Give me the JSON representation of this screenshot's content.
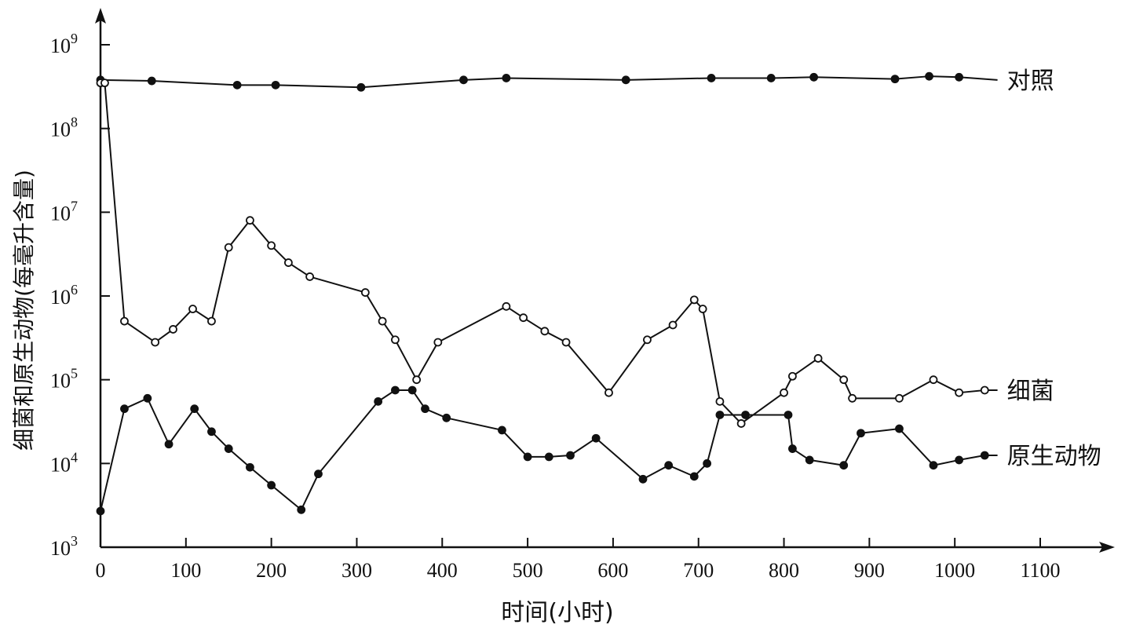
{
  "chart_data": {
    "type": "line",
    "title": "",
    "xlabel": "时间(小时)",
    "ylabel": "细菌和原生动物(每毫升含量)",
    "y_scale": "log",
    "xlim": [
      0,
      1100
    ],
    "ylim": [
      1000,
      1000000000
    ],
    "grid": false,
    "x_ticks": [
      "0",
      "100",
      "200",
      "300",
      "400",
      "500",
      "600",
      "700",
      "800",
      "900",
      "1000",
      "1100"
    ],
    "y_ticks": [
      {
        "base": "10",
        "exp": "3"
      },
      {
        "base": "10",
        "exp": "4"
      },
      {
        "base": "10",
        "exp": "5"
      },
      {
        "base": "10",
        "exp": "6"
      },
      {
        "base": "10",
        "exp": "7"
      },
      {
        "base": "10",
        "exp": "8"
      },
      {
        "base": "10",
        "exp": "9"
      }
    ],
    "series": [
      {
        "name": "对照",
        "marker": "filled",
        "x": [
          0,
          60,
          160,
          205,
          305,
          425,
          475,
          615,
          715,
          785,
          835,
          930,
          970,
          1005,
          1050
        ],
        "y": [
          380000000,
          370000000,
          330000000,
          330000000,
          310000000,
          380000000,
          400000000,
          380000000,
          400000000,
          400000000,
          410000000,
          390000000,
          420000000,
          410000000,
          380000000
        ],
        "label_end": 1050
      },
      {
        "name": "细菌",
        "marker": "open",
        "x": [
          0,
          5,
          28,
          64,
          85,
          108,
          130,
          150,
          175,
          200,
          220,
          245,
          310,
          330,
          345,
          370,
          395,
          475,
          495,
          520,
          545,
          595,
          640,
          670,
          695,
          705,
          725,
          750,
          800,
          810,
          840,
          870,
          880,
          935,
          975,
          1005,
          1035,
          1050
        ],
        "y": [
          350000000,
          350000000,
          500000,
          280000,
          400000,
          700000,
          500000,
          3800000,
          8000000,
          4000000,
          2500000,
          1700000,
          1100000,
          500000,
          300000,
          100000,
          280000,
          750000,
          550000,
          380000,
          280000,
          70000,
          300000,
          450000,
          900000,
          700000,
          55000,
          30000,
          70000,
          110000,
          180000,
          100000,
          60000,
          60000,
          100000,
          70000,
          75000,
          75000
        ],
        "label_end": 1050
      },
      {
        "name": "原生动物",
        "marker": "filled",
        "x": [
          0,
          28,
          55,
          80,
          110,
          130,
          150,
          175,
          200,
          235,
          255,
          325,
          345,
          365,
          380,
          405,
          470,
          500,
          525,
          550,
          580,
          635,
          665,
          695,
          710,
          725,
          755,
          805,
          810,
          830,
          870,
          890,
          935,
          975,
          1005,
          1035,
          1050
        ],
        "y": [
          2700,
          45000,
          60000,
          17000,
          45000,
          24000,
          15000,
          9000,
          5500,
          2800,
          7500,
          55000,
          75000,
          75000,
          45000,
          35000,
          25000,
          12000,
          12000,
          12500,
          20000,
          6500,
          9500,
          7000,
          10000,
          38000,
          38000,
          38000,
          15000,
          11000,
          9500,
          23000,
          26000,
          9500,
          11000,
          12500,
          12500
        ],
        "label_end": 1050
      }
    ]
  }
}
